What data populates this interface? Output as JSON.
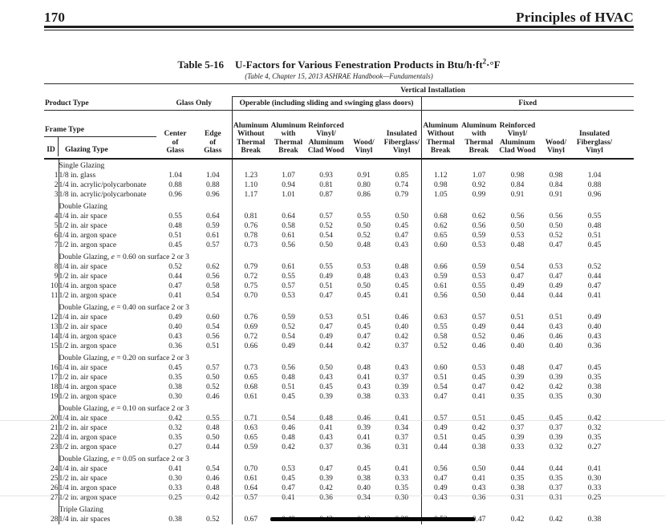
{
  "page_header": {
    "page_number": "170",
    "book_title": "Principles of HVAC"
  },
  "table": {
    "caption_label": "Table 5-16",
    "caption_title_pre": "U-Factors for Various Fenestration Products in Btu/h·ft",
    "caption_sup": "2",
    "caption_title_tail": "·°F",
    "source": "(Table 4, Chapter 15, 2013 ASHRAE Handbook—Fundamentals)",
    "vertical_installation": "Vertical Installation",
    "product_type": "Product Type",
    "glass_only": "Glass Only",
    "operable": "Operable (including sliding and swinging glass doors)",
    "fixed": "Fixed",
    "frame_type": "Frame Type",
    "id_header": "ID",
    "glazing_type_header": "Glazing Type",
    "center_of_glass": [
      "Center",
      "of",
      "Glass"
    ],
    "edge_of_glass": [
      "Edge",
      "of",
      "Glass"
    ],
    "frame_columns": [
      [
        "Aluminum",
        "Without",
        "Thermal",
        "Break"
      ],
      [
        "Aluminum",
        "with",
        "Thermal",
        "Break"
      ],
      [
        "Reinforced",
        "Vinyl/",
        "Aluminum",
        "Clad Wood"
      ],
      [
        "Wood/",
        "Vinyl"
      ],
      [
        "Insulated",
        "Fiberglass/",
        "Vinyl"
      ]
    ]
  },
  "sections": [
    {
      "label": "Single Glazing",
      "rows": [
        {
          "id": "1",
          "glazing": "1/8 in. glass",
          "values": [
            "1.04",
            "1.04",
            "1.23",
            "1.07",
            "0.93",
            "0.91",
            "0.85",
            "1.12",
            "1.07",
            "0.98",
            "0.98",
            "1.04"
          ]
        },
        {
          "id": "2",
          "glazing": "1/4 in. acrylic/polycarbonate",
          "values": [
            "0.88",
            "0.88",
            "1.10",
            "0.94",
            "0.81",
            "0.80",
            "0.74",
            "0.98",
            "0.92",
            "0.84",
            "0.84",
            "0.88"
          ]
        },
        {
          "id": "3",
          "glazing": "1/8 in. acrylic/polycarbonate",
          "values": [
            "0.96",
            "0.96",
            "1.17",
            "1.01",
            "0.87",
            "0.86",
            "0.79",
            "1.05",
            "0.99",
            "0.91",
            "0.91",
            "0.96"
          ]
        }
      ]
    },
    {
      "label": "Double Glazing",
      "rows": [
        {
          "id": "4",
          "glazing": "1/4 in. air space",
          "values": [
            "0.55",
            "0.64",
            "0.81",
            "0.64",
            "0.57",
            "0.55",
            "0.50",
            "0.68",
            "0.62",
            "0.56",
            "0.56",
            "0.55"
          ]
        },
        {
          "id": "5",
          "glazing": "1/2 in. air space",
          "values": [
            "0.48",
            "0.59",
            "0.76",
            "0.58",
            "0.52",
            "0.50",
            "0.45",
            "0.62",
            "0.56",
            "0.50",
            "0.50",
            "0.48"
          ]
        },
        {
          "id": "6",
          "glazing": "1/4 in. argon space",
          "values": [
            "0.51",
            "0.61",
            "0.78",
            "0.61",
            "0.54",
            "0.52",
            "0.47",
            "0.65",
            "0.59",
            "0.53",
            "0.52",
            "0.51"
          ]
        },
        {
          "id": "7",
          "glazing": "1/2 in. argon space",
          "values": [
            "0.45",
            "0.57",
            "0.73",
            "0.56",
            "0.50",
            "0.48",
            "0.43",
            "0.60",
            "0.53",
            "0.48",
            "0.47",
            "0.45"
          ]
        }
      ]
    },
    {
      "label": "Double Glazing, e = 0.60 on surface 2 or 3",
      "rows": [
        {
          "id": "8",
          "glazing": "1/4 in. air space",
          "values": [
            "0.52",
            "0.62",
            "0.79",
            "0.61",
            "0.55",
            "0.53",
            "0.48",
            "0.66",
            "0.59",
            "0.54",
            "0.53",
            "0.52"
          ]
        },
        {
          "id": "9",
          "glazing": "1/2 in. air space",
          "values": [
            "0.44",
            "0.56",
            "0.72",
            "0.55",
            "0.49",
            "0.48",
            "0.43",
            "0.59",
            "0.53",
            "0.47",
            "0.47",
            "0.44"
          ]
        },
        {
          "id": "10",
          "glazing": "1/4 in. argon space",
          "values": [
            "0.47",
            "0.58",
            "0.75",
            "0.57",
            "0.51",
            "0.50",
            "0.45",
            "0.61",
            "0.55",
            "0.49",
            "0.49",
            "0.47"
          ]
        },
        {
          "id": "11",
          "glazing": "1/2 in. argon space",
          "values": [
            "0.41",
            "0.54",
            "0.70",
            "0.53",
            "0.47",
            "0.45",
            "0.41",
            "0.56",
            "0.50",
            "0.44",
            "0.44",
            "0.41"
          ]
        }
      ]
    },
    {
      "label": "Double Glazing, e = 0.40 on surface 2 or 3",
      "rows": [
        {
          "id": "12",
          "glazing": "1/4 in. air space",
          "values": [
            "0.49",
            "0.60",
            "0.76",
            "0.59",
            "0.53",
            "0.51",
            "0.46",
            "0.63",
            "0.57",
            "0.51",
            "0.51",
            "0.49"
          ]
        },
        {
          "id": "13",
          "glazing": "1/2 in. air space",
          "values": [
            "0.40",
            "0.54",
            "0.69",
            "0.52",
            "0.47",
            "0.45",
            "0.40",
            "0.55",
            "0.49",
            "0.44",
            "0.43",
            "0.40"
          ]
        },
        {
          "id": "14",
          "glazing": "1/4 in. argon space",
          "values": [
            "0.43",
            "0.56",
            "0.72",
            "0.54",
            "0.49",
            "0.47",
            "0.42",
            "0.58",
            "0.52",
            "0.46",
            "0.46",
            "0.43"
          ]
        },
        {
          "id": "15",
          "glazing": "1/2 in. argon space",
          "values": [
            "0.36",
            "0.51",
            "0.66",
            "0.49",
            "0.44",
            "0.42",
            "0.37",
            "0.52",
            "0.46",
            "0.40",
            "0.40",
            "0.36"
          ]
        }
      ]
    },
    {
      "label": "Double Glazing, e = 0.20 on surface 2 or 3",
      "rows": [
        {
          "id": "16",
          "glazing": "1/4 in. air space",
          "values": [
            "0.45",
            "0.57",
            "0.73",
            "0.56",
            "0.50",
            "0.48",
            "0.43",
            "0.60",
            "0.53",
            "0.48",
            "0.47",
            "0.45"
          ]
        },
        {
          "id": "17",
          "glazing": "1/2 in. air space",
          "values": [
            "0.35",
            "0.50",
            "0.65",
            "0.48",
            "0.43",
            "0.41",
            "0.37",
            "0.51",
            "0.45",
            "0.39",
            "0.39",
            "0.35"
          ]
        },
        {
          "id": "18",
          "glazing": "1/4 in. argon space",
          "values": [
            "0.38",
            "0.52",
            "0.68",
            "0.51",
            "0.45",
            "0.43",
            "0.39",
            "0.54",
            "0.47",
            "0.42",
            "0.42",
            "0.38"
          ]
        },
        {
          "id": "19",
          "glazing": "1/2 in. argon space",
          "values": [
            "0.30",
            "0.46",
            "0.61",
            "0.45",
            "0.39",
            "0.38",
            "0.33",
            "0.47",
            "0.41",
            "0.35",
            "0.35",
            "0.30"
          ]
        }
      ]
    },
    {
      "label": "Double Glazing, e = 0.10 on surface 2 or 3",
      "rows": [
        {
          "id": "20",
          "glazing": "1/4 in. air space",
          "values": [
            "0.42",
            "0.55",
            "0.71",
            "0.54",
            "0.48",
            "0.46",
            "0.41",
            "0.57",
            "0.51",
            "0.45",
            "0.45",
            "0.42"
          ]
        },
        {
          "id": "21",
          "glazing": "1/2 in. air space",
          "values": [
            "0.32",
            "0.48",
            "0.63",
            "0.46",
            "0.41",
            "0.39",
            "0.34",
            "0.49",
            "0.42",
            "0.37",
            "0.37",
            "0.32"
          ]
        },
        {
          "id": "22",
          "glazing": "1/4 in. argon space",
          "values": [
            "0.35",
            "0.50",
            "0.65",
            "0.48",
            "0.43",
            "0.41",
            "0.37",
            "0.51",
            "0.45",
            "0.39",
            "0.39",
            "0.35"
          ]
        },
        {
          "id": "23",
          "glazing": "1/2 in. argon space",
          "values": [
            "0.27",
            "0.44",
            "0.59",
            "0.42",
            "0.37",
            "0.36",
            "0.31",
            "0.44",
            "0.38",
            "0.33",
            "0.32",
            "0.27"
          ]
        }
      ]
    },
    {
      "label": "Double Glazing, e = 0.05 on surface 2 or 3",
      "rows": [
        {
          "id": "24",
          "glazing": "1/4 in. air space",
          "values": [
            "0.41",
            "0.54",
            "0.70",
            "0.53",
            "0.47",
            "0.45",
            "0.41",
            "0.56",
            "0.50",
            "0.44",
            "0.44",
            "0.41"
          ]
        },
        {
          "id": "25",
          "glazing": "1/2 in. air space",
          "values": [
            "0.30",
            "0.46",
            "0.61",
            "0.45",
            "0.39",
            "0.38",
            "0.33",
            "0.47",
            "0.41",
            "0.35",
            "0.35",
            "0.30"
          ]
        },
        {
          "id": "26",
          "glazing": "1/4 in. argon space",
          "values": [
            "0.33",
            "0.48",
            "0.64",
            "0.47",
            "0.42",
            "0.40",
            "0.35",
            "0.49",
            "0.43",
            "0.38",
            "0.37",
            "0.33"
          ]
        },
        {
          "id": "27",
          "glazing": "1/2 in. argon space",
          "values": [
            "0.25",
            "0.42",
            "0.57",
            "0.41",
            "0.36",
            "0.34",
            "0.30",
            "0.43",
            "0.36",
            "0.31",
            "0.31",
            "0.25"
          ]
        }
      ]
    },
    {
      "label": "Triple Glazing",
      "rows": [
        {
          "id": "28",
          "glazing": "1/4 in. air spaces",
          "values": [
            "0.38",
            "0.52",
            "0.67",
            "0.49",
            "0.43",
            "0.42",
            "0.38",
            "0.52",
            "0.47",
            "0.42",
            "0.42",
            "0.38"
          ]
        }
      ]
    }
  ],
  "redaction": {
    "row_id": "28",
    "covered_value_indexes": [
      3,
      4,
      5,
      6,
      7
    ]
  }
}
